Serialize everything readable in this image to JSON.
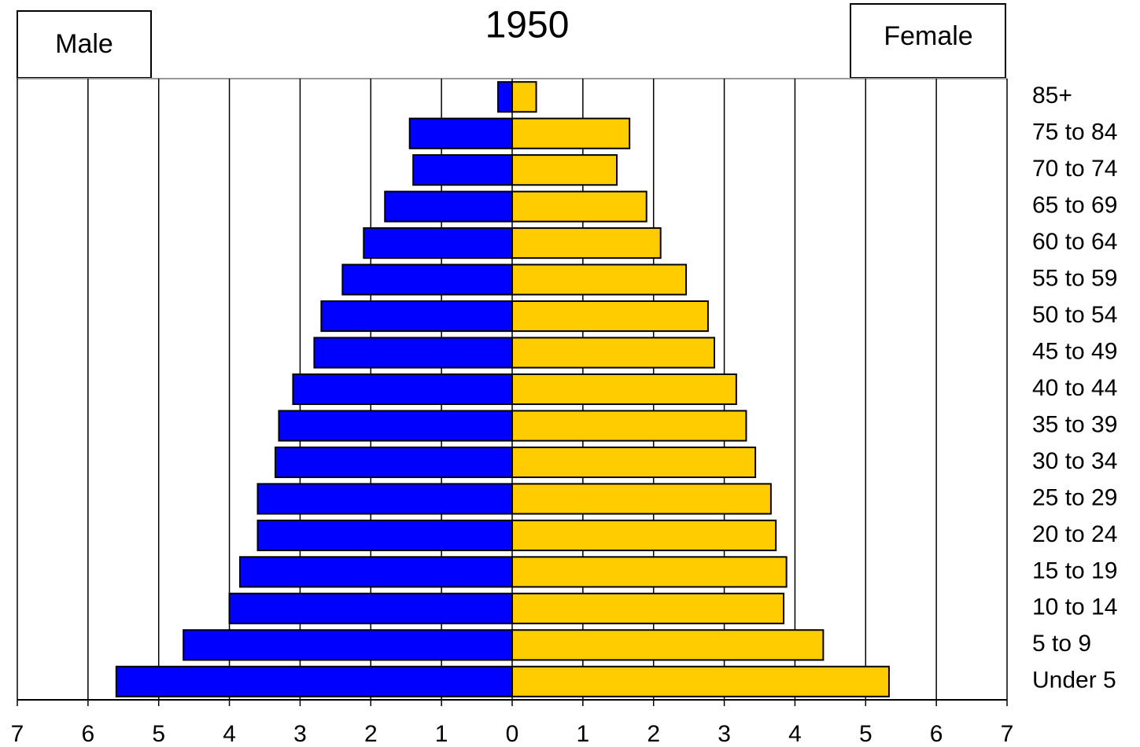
{
  "chart_data": {
    "type": "pyramid",
    "title": "1950",
    "categories": [
      "85+",
      "75 to 84",
      "70 to 74",
      "65 to 69",
      "60 to 64",
      "55 to 59",
      "50 to 54",
      "45 to 49",
      "40 to 44",
      "35 to 39",
      "30 to 34",
      "25 to 29",
      "20 to 24",
      "15 to 19",
      "10 to 14",
      "5 to 9",
      "Under 5"
    ],
    "series": [
      {
        "name": "Male",
        "color": "#0000ff",
        "values": [
          -0.2,
          -1.45,
          -1.4,
          -1.8,
          -2.1,
          -2.4,
          -2.7,
          -2.8,
          -3.1,
          -3.3,
          -3.35,
          -3.6,
          -3.6,
          -3.85,
          -4.0,
          -4.65,
          -5.6
        ]
      },
      {
        "name": "Female",
        "color": "#ffcc00",
        "values": [
          0.34,
          1.66,
          1.48,
          1.9,
          2.1,
          2.46,
          2.77,
          2.86,
          3.17,
          3.31,
          3.44,
          3.66,
          3.73,
          3.88,
          3.84,
          4.4,
          5.33
        ]
      }
    ],
    "xlim": [
      -7,
      7
    ],
    "xticks": [
      {
        "value": -7,
        "label": "7"
      },
      {
        "value": -6,
        "label": "6"
      },
      {
        "value": -5,
        "label": "5"
      },
      {
        "value": -4,
        "label": "4"
      },
      {
        "value": -3,
        "label": "3"
      },
      {
        "value": -2,
        "label": "2"
      },
      {
        "value": -1,
        "label": "1"
      },
      0,
      1,
      2,
      3,
      4,
      5,
      6,
      7
    ],
    "grid": true
  }
}
